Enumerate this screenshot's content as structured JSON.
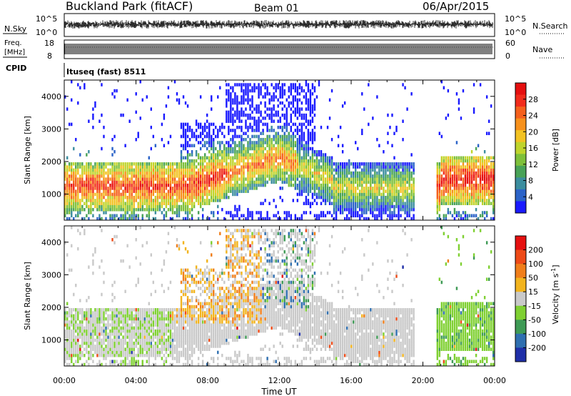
{
  "header": {
    "title": "Buckland Park (fitACF)",
    "beam": "Beam 01",
    "date": "06/Apr/2015"
  },
  "noise_panel": {
    "left_label": "N.Sky",
    "left_ticks": [
      "10^5",
      "10^0"
    ],
    "right_ticks": [
      "10^5",
      "10^0"
    ],
    "right_label": "N.Search"
  },
  "freq_panel": {
    "left_label_1": "Freq.",
    "left_label_2": "[MHz]",
    "left_ticks": [
      "18",
      "8"
    ],
    "right_ticks": [
      "60",
      "0"
    ],
    "right_label": "Nave"
  },
  "cpid_panel": {
    "label": "CPID",
    "value": "Ituseq (fast) 8511"
  },
  "chart_data": [
    {
      "type": "heatmap",
      "name": "power",
      "ylabel": "Slant Range [km]",
      "ylim": [
        200,
        4500
      ],
      "xlim": [
        0,
        24
      ],
      "yticks": [
        1000,
        2000,
        3000,
        4000
      ],
      "colorbar": {
        "label": "Power [dB]",
        "ticks": [
          "28",
          "24",
          "20",
          "16",
          "12",
          "8",
          "4"
        ],
        "colors": [
          "#1a1aff",
          "#2b63c8",
          "#3b8d9e",
          "#48a257",
          "#7ec03a",
          "#bfd42c",
          "#f2c222",
          "#f7911c",
          "#f5601c",
          "#f12b1b",
          "#e50f0f"
        ],
        "range": [
          0,
          30
        ]
      }
    },
    {
      "type": "heatmap",
      "name": "velocity",
      "ylabel": "Slant Range [km]",
      "ylim": [
        200,
        4500
      ],
      "xlim": [
        0,
        24
      ],
      "yticks": [
        1000,
        2000,
        3000,
        4000
      ],
      "xticks": [
        "00:00",
        "04:00",
        "08:00",
        "12:00",
        "16:00",
        "20:00",
        "00:00"
      ],
      "xlabel": "Time UT",
      "colorbar": {
        "label": "Velocity [m s",
        "label_sup": "-1",
        "label_end": "]",
        "ticks": [
          "200",
          "100",
          "50",
          "15",
          "-15",
          "-50",
          "-100",
          "-200"
        ],
        "colors": [
          "#1f2fa8",
          "#2f6fb0",
          "#3e9a55",
          "#7fd032",
          "#c9c9c9",
          "#f2b41e",
          "#f07e1a",
          "#ee4a17",
          "#e51010"
        ]
      }
    }
  ]
}
